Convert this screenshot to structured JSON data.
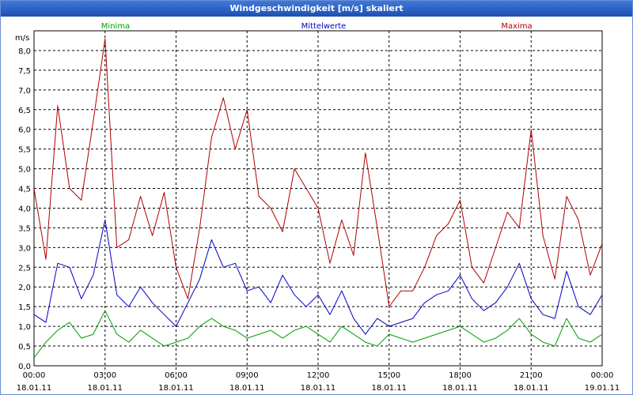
{
  "window": {
    "title": "Windgeschwindigkeit [m/s] skaliert"
  },
  "colors": {
    "minima": "#00a000",
    "mittelwerte": "#0000c0",
    "maxima": "#b00000",
    "grid": "#000000",
    "titlebar": "#2a5fc4"
  },
  "chart_data": {
    "type": "line",
    "title": "Windgeschwindigkeit [m/s] skaliert",
    "ylabel": "m/s",
    "xlabel": "",
    "ylim": [
      0,
      8.5
    ],
    "xlim": [
      "18.01.11 00:00",
      "19.01.11 00:00"
    ],
    "y_ticks": [
      "0,0",
      "0,5",
      "1,0",
      "1,5",
      "2,0",
      "2,5",
      "3,0",
      "3,5",
      "4,0",
      "4,5",
      "5,0",
      "5,5",
      "6,0",
      "6,5",
      "7,0",
      "7,5",
      "8,0"
    ],
    "x_ticks": [
      {
        "time": "00:00",
        "date": "18.01.11"
      },
      {
        "time": "03:00",
        "date": "18.01.11"
      },
      {
        "time": "06:00",
        "date": "18.01.11"
      },
      {
        "time": "09:00",
        "date": "18.01.11"
      },
      {
        "time": "12:00",
        "date": "18.01.11"
      },
      {
        "time": "15:00",
        "date": "18.01.11"
      },
      {
        "time": "18:00",
        "date": "18.01.11"
      },
      {
        "time": "21:00",
        "date": "18.01.11"
      },
      {
        "time": "00:00",
        "date": "19.01.11"
      }
    ],
    "grid": true,
    "legend_position": "top",
    "x_hours": [
      0,
      0.5,
      1,
      1.5,
      2,
      2.5,
      3,
      3.5,
      4,
      4.5,
      5,
      5.5,
      6,
      6.5,
      7,
      7.5,
      8,
      8.5,
      9,
      9.5,
      10,
      10.5,
      11,
      11.5,
      12,
      12.5,
      13,
      13.5,
      14,
      14.5,
      15,
      15.5,
      16,
      16.5,
      17,
      17.5,
      18,
      18.5,
      19,
      19.5,
      20,
      20.5,
      21,
      21.5,
      22,
      22.5,
      23,
      23.5,
      24
    ],
    "series": [
      {
        "name": "Minima",
        "values": [
          0.2,
          0.6,
          0.9,
          1.1,
          0.7,
          0.8,
          1.4,
          0.8,
          0.6,
          0.9,
          0.7,
          0.5,
          0.6,
          0.7,
          1.0,
          1.2,
          1.0,
          0.9,
          0.7,
          0.8,
          0.9,
          0.7,
          0.9,
          1.0,
          0.8,
          0.6,
          1.0,
          0.8,
          0.6,
          0.5,
          0.8,
          0.7,
          0.6,
          0.7,
          0.8,
          0.9,
          1.0,
          0.8,
          0.6,
          0.7,
          0.9,
          1.2,
          0.8,
          0.6,
          0.5,
          1.2,
          0.7,
          0.6,
          0.8
        ]
      },
      {
        "name": "Mittelwerte",
        "values": [
          1.3,
          1.1,
          2.6,
          2.5,
          1.7,
          2.3,
          3.7,
          1.8,
          1.5,
          2.0,
          1.6,
          1.3,
          1.0,
          1.6,
          2.2,
          3.2,
          2.5,
          2.6,
          1.9,
          2.0,
          1.6,
          2.3,
          1.8,
          1.5,
          1.8,
          1.3,
          1.9,
          1.2,
          0.8,
          1.2,
          1.0,
          1.1,
          1.2,
          1.6,
          1.8,
          1.9,
          2.3,
          1.7,
          1.4,
          1.6,
          2.0,
          2.6,
          1.7,
          1.3,
          1.2,
          2.4,
          1.5,
          1.3,
          1.8
        ]
      },
      {
        "name": "Maxima",
        "values": [
          4.5,
          2.7,
          6.6,
          4.5,
          4.2,
          6.2,
          8.3,
          3.0,
          3.2,
          4.3,
          3.3,
          4.4,
          2.5,
          1.7,
          3.5,
          5.8,
          6.8,
          5.5,
          6.5,
          4.3,
          4.0,
          3.4,
          5.0,
          4.5,
          4.0,
          2.6,
          3.7,
          2.8,
          5.4,
          3.5,
          1.5,
          1.9,
          1.9,
          2.5,
          3.3,
          3.6,
          4.2,
          2.5,
          2.1,
          3.0,
          3.9,
          3.5,
          6.0,
          3.3,
          2.2,
          4.3,
          3.7,
          2.3,
          3.1
        ]
      }
    ]
  }
}
